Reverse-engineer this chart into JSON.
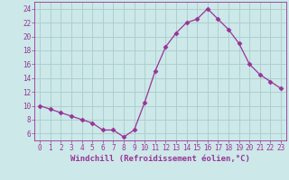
{
  "x": [
    0,
    1,
    2,
    3,
    4,
    5,
    6,
    7,
    8,
    9,
    10,
    11,
    12,
    13,
    14,
    15,
    16,
    17,
    18,
    19,
    20,
    21,
    22,
    23
  ],
  "y": [
    10,
    9.5,
    9,
    8.5,
    8,
    7.5,
    6.5,
    6.5,
    5.5,
    6.5,
    10.5,
    15,
    18.5,
    20.5,
    22,
    22.5,
    24,
    22.5,
    21,
    19,
    16,
    14.5,
    13.5,
    12.5
  ],
  "line_color": "#993399",
  "marker": "D",
  "marker_size": 2.5,
  "line_width": 0.9,
  "bg_color": "#cce8e8",
  "grid_color": "#aacccc",
  "xlabel": "Windchill (Refroidissement éolien,°C)",
  "xlabel_fontsize": 6.5,
  "xtick_labels": [
    "0",
    "1",
    "2",
    "3",
    "4",
    "5",
    "6",
    "7",
    "8",
    "9",
    "10",
    "11",
    "12",
    "13",
    "14",
    "15",
    "16",
    "17",
    "18",
    "19",
    "20",
    "21",
    "22",
    "23"
  ],
  "ytick_values": [
    6,
    8,
    10,
    12,
    14,
    16,
    18,
    20,
    22,
    24
  ],
  "ylim": [
    5.0,
    25.0
  ],
  "xlim": [
    -0.5,
    23.5
  ],
  "tick_fontsize": 5.5,
  "tick_color": "#993399",
  "label_color": "#993399"
}
